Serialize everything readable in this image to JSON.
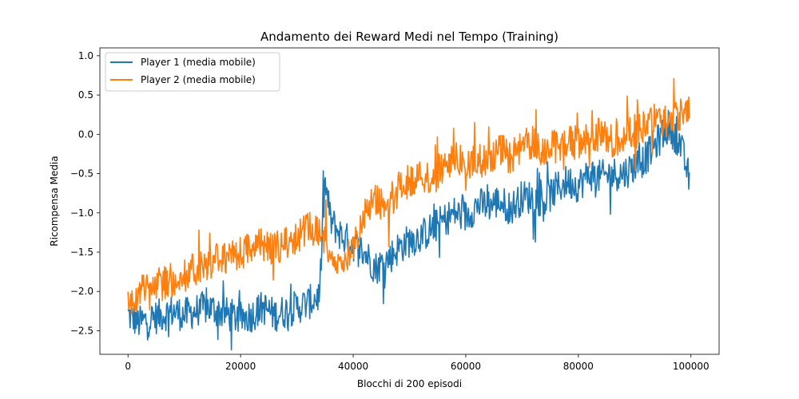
{
  "chart_data": {
    "type": "line",
    "title": "Andamento dei Reward Medi nel Tempo (Training)",
    "xlabel": "Blocchi di 200 episodi",
    "ylabel": "Ricompensa Media",
    "xlim": [
      -5000,
      105000
    ],
    "ylim": [
      -2.8,
      1.1
    ],
    "xticks": [
      0,
      20000,
      40000,
      60000,
      80000,
      100000
    ],
    "yticks": [
      -2.5,
      -2.0,
      -1.5,
      -1.0,
      -0.5,
      0.0,
      0.5,
      1.0
    ],
    "xtick_labels": [
      "0",
      "20000",
      "40000",
      "60000",
      "80000",
      "100000"
    ],
    "ytick_labels": [
      "−2.5",
      "−2.0",
      "−1.5",
      "−1.0",
      "−0.5",
      "0.0",
      "0.5",
      "1.0"
    ],
    "grid": false,
    "legend_position": "upper-left",
    "series": [
      {
        "name": "Player 1 (media mobile)",
        "color": "#1f77b4",
        "x": [
          0,
          2000,
          4000,
          6000,
          8000,
          10000,
          12000,
          14000,
          16000,
          18000,
          20000,
          22000,
          24000,
          26000,
          28000,
          30000,
          32000,
          34000,
          35000,
          36000,
          38000,
          40000,
          42000,
          44000,
          46000,
          48000,
          50000,
          52000,
          54000,
          56000,
          58000,
          60000,
          62000,
          64000,
          66000,
          68000,
          70000,
          72000,
          74000,
          76000,
          78000,
          80000,
          82000,
          84000,
          86000,
          88000,
          90000,
          92000,
          94000,
          96000,
          98000,
          99800
        ],
        "y": [
          -2.3,
          -2.4,
          -2.35,
          -2.3,
          -2.25,
          -2.3,
          -2.25,
          -2.2,
          -2.25,
          -2.3,
          -2.35,
          -2.3,
          -2.2,
          -2.3,
          -2.25,
          -2.2,
          -2.15,
          -2.05,
          -0.6,
          -1.1,
          -1.3,
          -1.4,
          -1.5,
          -1.7,
          -1.6,
          -1.45,
          -1.35,
          -1.3,
          -1.2,
          -1.1,
          -1.0,
          -1.05,
          -0.9,
          -0.9,
          -0.85,
          -0.95,
          -0.8,
          -0.8,
          -0.85,
          -0.7,
          -0.6,
          -0.65,
          -0.5,
          -0.55,
          -0.5,
          -0.5,
          -0.4,
          -0.3,
          -0.1,
          0.1,
          -0.1,
          -0.6
        ]
      },
      {
        "name": "Player 2 (media mobile)",
        "color": "#ff7f0e",
        "x": [
          0,
          2000,
          4000,
          6000,
          8000,
          10000,
          12000,
          14000,
          16000,
          18000,
          20000,
          22000,
          24000,
          26000,
          28000,
          30000,
          32000,
          34000,
          36000,
          38000,
          40000,
          42000,
          44000,
          46000,
          48000,
          50000,
          52000,
          54000,
          56000,
          58000,
          60000,
          62000,
          64000,
          66000,
          68000,
          70000,
          72000,
          74000,
          76000,
          78000,
          80000,
          82000,
          84000,
          86000,
          88000,
          90000,
          92000,
          94000,
          96000,
          98000,
          99800
        ],
        "y": [
          -2.2,
          -2.0,
          -1.95,
          -1.9,
          -1.85,
          -1.8,
          -1.7,
          -1.65,
          -1.6,
          -1.6,
          -1.5,
          -1.45,
          -1.4,
          -1.45,
          -1.4,
          -1.3,
          -1.2,
          -1.25,
          -1.5,
          -1.7,
          -1.4,
          -1.0,
          -0.8,
          -1.0,
          -0.7,
          -0.6,
          -0.5,
          -0.55,
          -0.4,
          -0.3,
          -0.4,
          -0.35,
          -0.3,
          -0.2,
          -0.3,
          -0.15,
          -0.1,
          -0.2,
          -0.15,
          -0.1,
          -0.1,
          -0.05,
          0.0,
          -0.1,
          0.0,
          0.05,
          0.1,
          0.2,
          0.15,
          0.25,
          0.4
        ]
      }
    ]
  }
}
